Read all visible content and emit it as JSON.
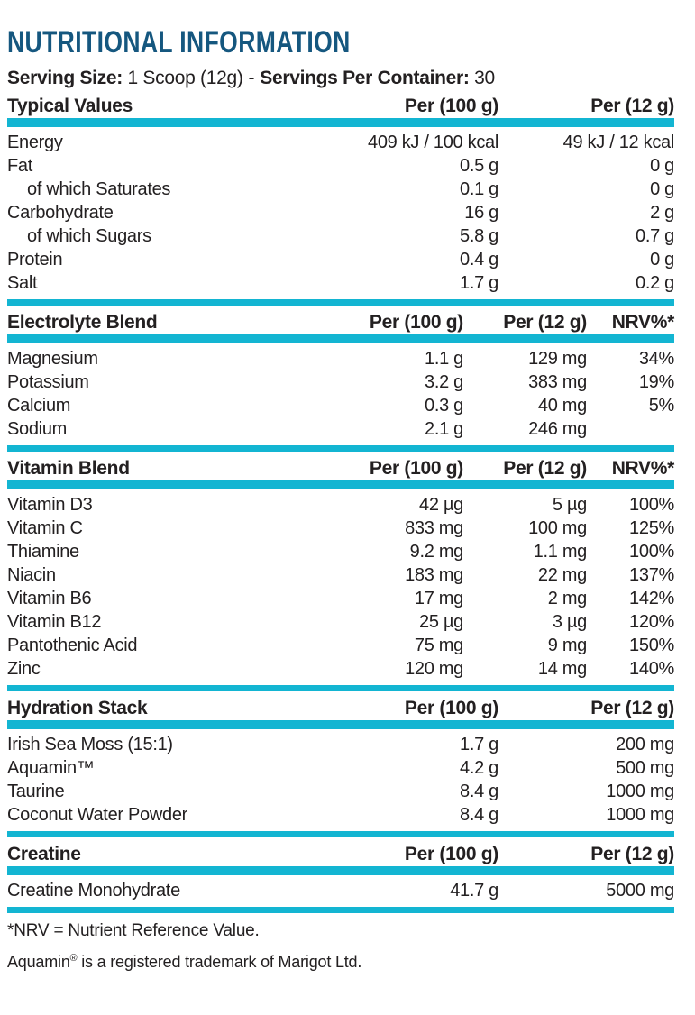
{
  "title": "NUTRITIONAL INFORMATION",
  "serving": {
    "size_label": "Serving Size:",
    "size_value": " 1 Scoop (12g)",
    "separator": "-",
    "container_label": "Servings Per Container:",
    "container_value": " 30"
  },
  "colors": {
    "accent_cyan": "#13b5d2",
    "title_blue": "#15577f",
    "text_ink": "#232021"
  },
  "sections": [
    {
      "name": "Typical Values",
      "columns": [
        "Per (100 g)",
        "Per (12 g)"
      ],
      "rows": [
        {
          "label": "Energy",
          "indent": false,
          "values": [
            "409 kJ / 100 kcal",
            "49 kJ / 12 kcal"
          ]
        },
        {
          "label": "Fat",
          "indent": false,
          "values": [
            "0.5 g",
            "0 g"
          ]
        },
        {
          "label": "of which Saturates",
          "indent": true,
          "values": [
            "0.1 g",
            "0 g"
          ]
        },
        {
          "label": "Carbohydrate",
          "indent": false,
          "values": [
            "16 g",
            "2 g"
          ]
        },
        {
          "label": "of which Sugars",
          "indent": true,
          "values": [
            "5.8 g",
            "0.7 g"
          ]
        },
        {
          "label": "Protein",
          "indent": false,
          "values": [
            "0.4 g",
            "0 g"
          ]
        },
        {
          "label": "Salt",
          "indent": false,
          "values": [
            "1.7 g",
            "0.2 g"
          ]
        }
      ]
    },
    {
      "name": "Electrolyte Blend",
      "columns": [
        "Per (100 g)",
        "Per (12 g)",
        "NRV%*"
      ],
      "rows": [
        {
          "label": "Magnesium",
          "indent": false,
          "values": [
            "1.1 g",
            "129 mg",
            "34%"
          ]
        },
        {
          "label": "Potassium",
          "indent": false,
          "values": [
            "3.2 g",
            "383 mg",
            "19%"
          ]
        },
        {
          "label": "Calcium",
          "indent": false,
          "values": [
            "0.3 g",
            "40 mg",
            "5%"
          ]
        },
        {
          "label": "Sodium",
          "indent": false,
          "values": [
            "2.1 g",
            "246 mg",
            ""
          ]
        }
      ]
    },
    {
      "name": "Vitamin Blend",
      "columns": [
        "Per (100 g)",
        "Per (12 g)",
        "NRV%*"
      ],
      "rows": [
        {
          "label": "Vitamin D3",
          "indent": false,
          "values": [
            "42 µg",
            "5 µg",
            "100%"
          ]
        },
        {
          "label": "Vitamin C",
          "indent": false,
          "values": [
            "833 mg",
            "100 mg",
            "125%"
          ]
        },
        {
          "label": "Thiamine",
          "indent": false,
          "values": [
            "9.2 mg",
            "1.1 mg",
            "100%"
          ]
        },
        {
          "label": "Niacin",
          "indent": false,
          "values": [
            "183 mg",
            "22 mg",
            "137%"
          ]
        },
        {
          "label": "Vitamin B6",
          "indent": false,
          "values": [
            "17 mg",
            "2 mg",
            "142%"
          ]
        },
        {
          "label": "Vitamin B12",
          "indent": false,
          "values": [
            "25 µg",
            "3 µg",
            "120%"
          ]
        },
        {
          "label": "Pantothenic Acid",
          "indent": false,
          "values": [
            "75 mg",
            "9 mg",
            "150%"
          ]
        },
        {
          "label": "Zinc",
          "indent": false,
          "values": [
            "120 mg",
            "14 mg",
            "140%"
          ]
        }
      ]
    },
    {
      "name": "Hydration Stack",
      "columns": [
        "Per (100 g)",
        "Per (12 g)"
      ],
      "rows": [
        {
          "label": "Irish Sea Moss (15:1)",
          "indent": false,
          "values": [
            "1.7 g",
            "200 mg"
          ]
        },
        {
          "label": "Aquamin™",
          "indent": false,
          "values": [
            "4.2 g",
            "500 mg"
          ]
        },
        {
          "label": "Taurine",
          "indent": false,
          "values": [
            "8.4 g",
            "1000 mg"
          ]
        },
        {
          "label": "Coconut Water Powder",
          "indent": false,
          "values": [
            "8.4 g",
            "1000 mg"
          ]
        }
      ]
    },
    {
      "name": "Creatine",
      "columns": [
        "Per (100 g)",
        "Per (12 g)"
      ],
      "rows": [
        {
          "label": "Creatine Monohydrate",
          "indent": false,
          "values": [
            "41.7 g",
            "5000 mg"
          ]
        }
      ]
    }
  ],
  "footnotes": {
    "nrv": "*NRV = Nutrient Reference Value.",
    "aquamin": {
      "pre": "Aquamin",
      "sup": "®",
      "rest": " is a registered trademark of Marigot Ltd."
    }
  }
}
